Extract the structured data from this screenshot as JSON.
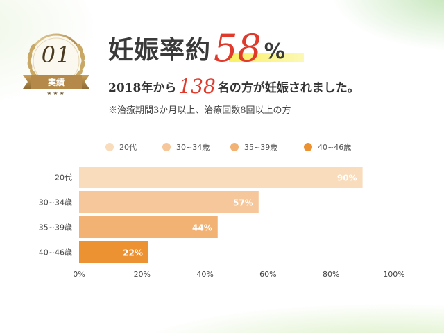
{
  "medal": {
    "number": "01",
    "label": "実績",
    "stars": "★★★"
  },
  "headline": {
    "text": "妊娠率約",
    "percent": "58",
    "sign": "%"
  },
  "subline": {
    "prefix": "2018年から",
    "count": "138",
    "suffix": "名の方が妊娠されました。"
  },
  "note": "※治療期間3か月以上、治療回数8回以上の方",
  "colors": {
    "accent_red": "#e03a2c",
    "bar_20s": "#f8dcbc",
    "bar_30_34": "#f5c79a",
    "bar_35_39": "#f2b273",
    "bar_40_46": "#ec9232"
  },
  "chart_data": {
    "type": "bar",
    "orientation": "horizontal",
    "categories": [
      "20代",
      "30~34歳",
      "35~39歳",
      "40~46歳"
    ],
    "values": [
      90,
      57,
      44,
      22
    ],
    "value_labels": [
      "90%",
      "57%",
      "44%",
      "22%"
    ],
    "legend": [
      "20代",
      "30~34歳",
      "35~39歳",
      "40~46歳"
    ],
    "legend_position": "top",
    "colors": [
      "#f8dcbc",
      "#f5c79a",
      "#f2b273",
      "#ec9232"
    ],
    "xlim": [
      0,
      100
    ],
    "xticks": [
      0,
      20,
      40,
      60,
      80,
      100
    ],
    "xtick_labels": [
      "0%",
      "20%",
      "40%",
      "60%",
      "80%",
      "100%"
    ],
    "grid": false
  }
}
